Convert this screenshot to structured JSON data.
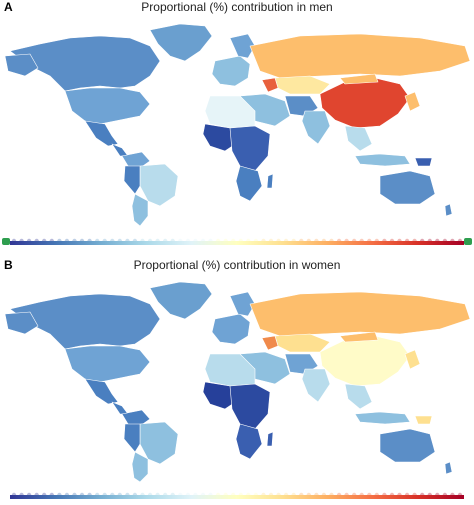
{
  "panels": [
    {
      "id": "A",
      "letter": "A",
      "title": "Proportional (%) contribution in men"
    },
    {
      "id": "B",
      "letter": "B",
      "title": "Proportional (%) contribution in women"
    }
  ],
  "colors": {
    "ocean": "#ffffff",
    "border": "#ffffff",
    "scale": [
      "#313695",
      "#4575b4",
      "#74add1",
      "#abd9e9",
      "#e0f3f8",
      "#ffffbf",
      "#fee090",
      "#fdae61",
      "#f46d43",
      "#d73027",
      "#a50026"
    ],
    "handle": "#2e9e4f"
  },
  "icons": [
    "legend-left-handle-icon",
    "legend-right-handle-icon"
  ]
}
